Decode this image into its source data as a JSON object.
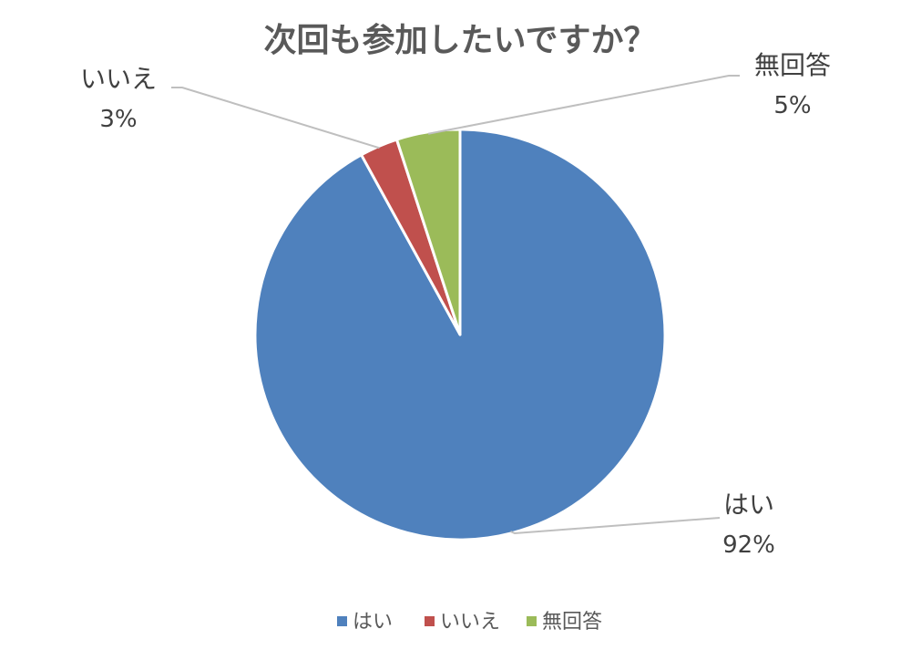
{
  "chart_data": {
    "type": "pie",
    "title": "次回も参加したいですか？",
    "categories": [
      "はい",
      "いいえ",
      "無回答"
    ],
    "values": [
      92,
      3,
      5
    ],
    "value_labels": [
      "92%",
      "3%",
      "5%"
    ],
    "colors": [
      "#4F81BD",
      "#C0504D",
      "#9BBB59"
    ],
    "legend": {
      "position": "bottom",
      "items": [
        "はい",
        "いいえ",
        "無回答"
      ]
    }
  }
}
